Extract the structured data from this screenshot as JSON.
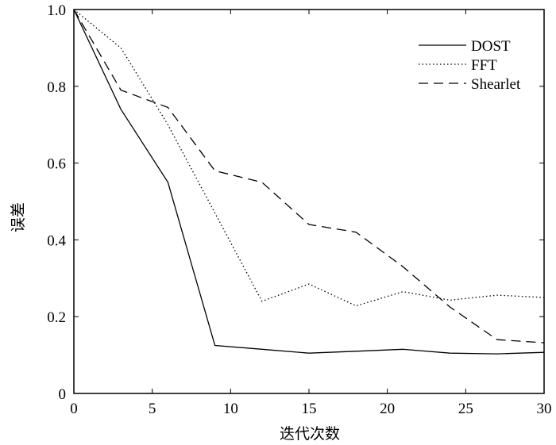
{
  "chart_data": {
    "type": "line",
    "title": "",
    "xlabel": "迭代次数",
    "ylabel": "误差",
    "xlim": [
      0,
      30
    ],
    "ylim": [
      0,
      1.0
    ],
    "xticks": [
      0,
      5,
      10,
      15,
      20,
      25,
      30
    ],
    "xtick_labels": [
      "0",
      "5",
      "10",
      "15",
      "20",
      "25",
      "30"
    ],
    "yticks": [
      0,
      0.2,
      0.4,
      0.6,
      0.8,
      1.0
    ],
    "ytick_labels": [
      "0",
      "0.2",
      "0.4",
      "0.6",
      "0.8",
      "1.0"
    ],
    "grid": false,
    "legend_position": "top-right",
    "series": [
      {
        "name": "DOST",
        "style": "solid",
        "color": "#000000",
        "x": [
          0,
          3,
          6,
          9,
          12,
          15,
          18,
          21,
          24,
          27,
          30
        ],
        "y": [
          1.0,
          0.74,
          0.55,
          0.125,
          0.115,
          0.105,
          0.11,
          0.115,
          0.105,
          0.103,
          0.107
        ]
      },
      {
        "name": "FFT",
        "style": "dotted",
        "color": "#000000",
        "x": [
          0,
          3,
          6,
          9,
          12,
          15,
          18,
          21,
          24,
          27,
          30
        ],
        "y": [
          1.0,
          0.9,
          0.7,
          0.47,
          0.24,
          0.285,
          0.228,
          0.265,
          0.243,
          0.256,
          0.25
        ]
      },
      {
        "name": "Shearlet",
        "style": "dashed",
        "color": "#000000",
        "x": [
          0,
          3,
          6,
          9,
          12,
          15,
          18,
          21,
          24,
          27,
          30
        ],
        "y": [
          1.0,
          0.79,
          0.745,
          0.58,
          0.55,
          0.44,
          0.42,
          0.33,
          0.225,
          0.14,
          0.132
        ]
      }
    ]
  }
}
